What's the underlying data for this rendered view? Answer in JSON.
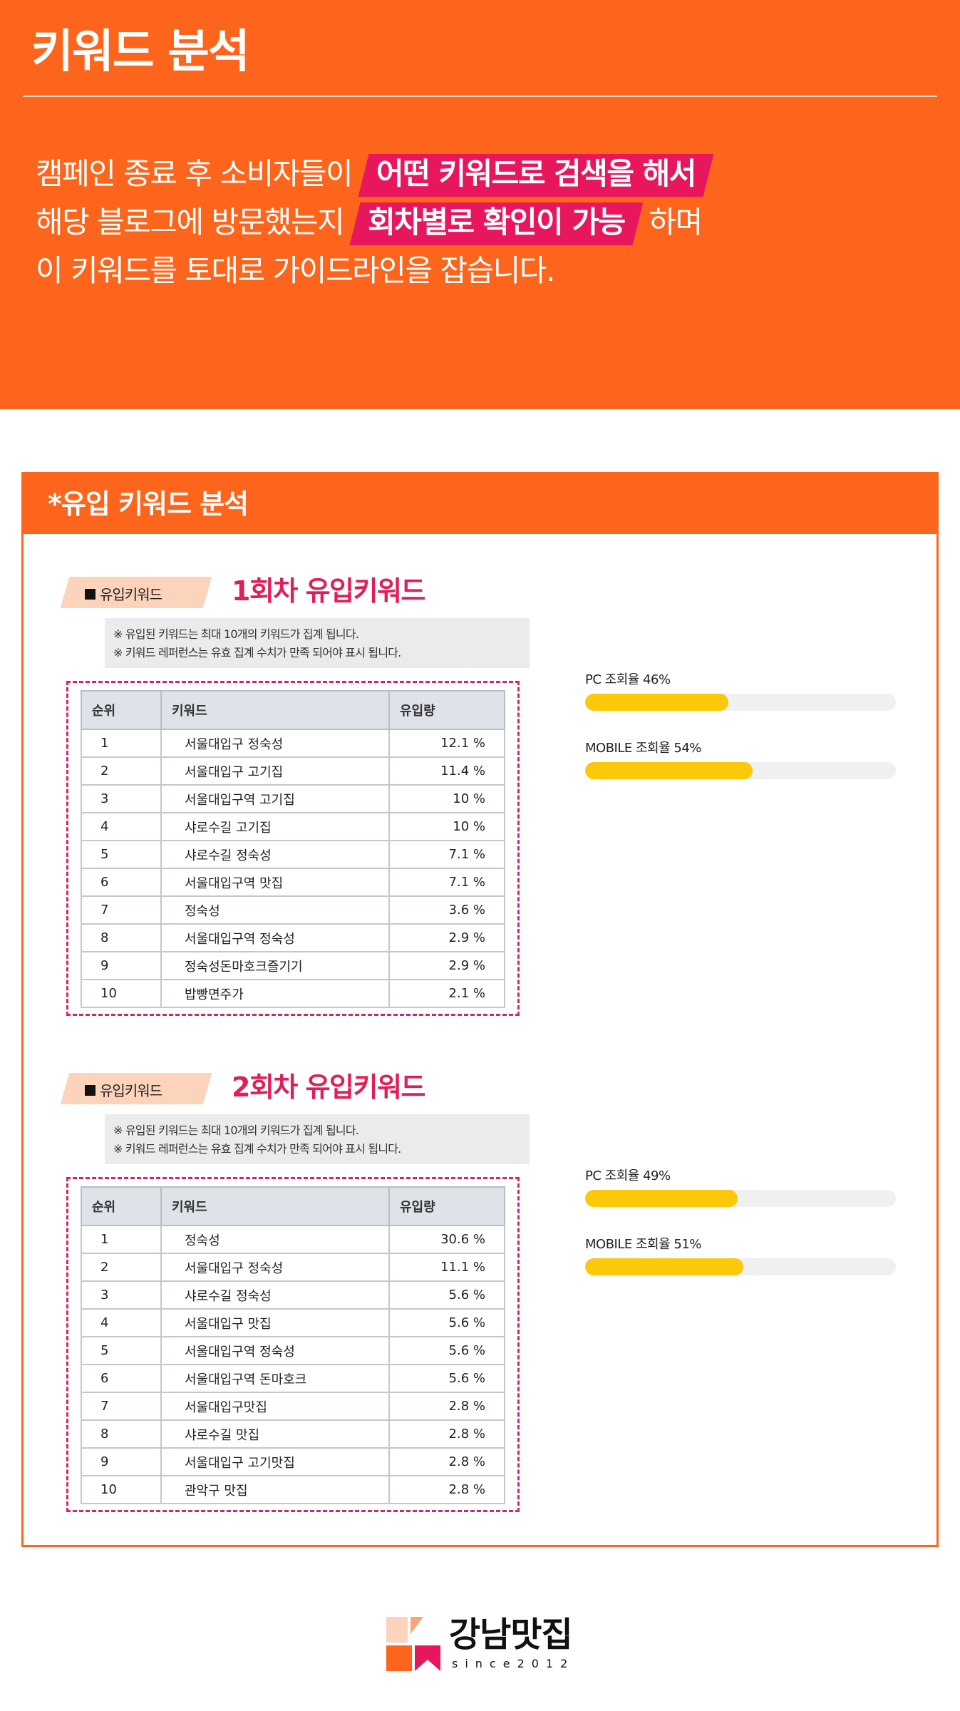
{
  "hero": {
    "title": "키워드 분석",
    "line1_pre": "캠페인 종료 후 소비자들이",
    "line1_highlight": "어떤 키워드로 검색을 해서",
    "line2_pre": "해당 블로그에 방문했는지",
    "line2_highlight": "회차별로 확인이 가능",
    "line2_post": "하며",
    "line3": "이 키워드를 토대로 가이드라인을 잡습니다.",
    "colors": {
      "background": "#fc651b",
      "highlight": "#e8175d"
    }
  },
  "panel": {
    "title": "*유입 키워드 분석",
    "rounds": [
      {
        "badge": "유입키워드",
        "title": "1회차 유입키워드",
        "notes": [
          "※ 유입된 키워드는 최대 10개의 키워드가 집계 됩니다.",
          "※ 키워드 레퍼런스는 유효 집계 수치가 만족 되어야 표시 됩니다."
        ],
        "headers": [
          "순위",
          "키워드",
          "유입량"
        ],
        "rows": [
          {
            "rank": "1",
            "keyword": "서울대입구 정숙성",
            "rate": "12.1 %"
          },
          {
            "rank": "2",
            "keyword": "서울대입구 고기집",
            "rate": "11.4 %"
          },
          {
            "rank": "3",
            "keyword": "서울대입구역 고기집",
            "rate": "10 %"
          },
          {
            "rank": "4",
            "keyword": "샤로수길 고기집",
            "rate": "10 %"
          },
          {
            "rank": "5",
            "keyword": "샤로수길 정숙성",
            "rate": "7.1 %"
          },
          {
            "rank": "6",
            "keyword": "서울대입구역 맛집",
            "rate": "7.1 %"
          },
          {
            "rank": "7",
            "keyword": "정숙성",
            "rate": "3.6 %"
          },
          {
            "rank": "8",
            "keyword": "서울대입구역 정숙성",
            "rate": "2.9 %"
          },
          {
            "rank": "9",
            "keyword": "정숙성돈마호크즐기기",
            "rate": "2.9 %"
          },
          {
            "rank": "10",
            "keyword": "밥빵면주가",
            "rate": "2.1 %"
          }
        ],
        "stats": [
          {
            "label": "PC 조회율 46%",
            "percent": 46
          },
          {
            "label": "MOBILE 조회율 54%",
            "percent": 54
          }
        ]
      },
      {
        "badge": "유입키워드",
        "title": "2회차 유입키워드",
        "notes": [
          "※ 유입된 키워드는 최대 10개의 키워드가 집계 됩니다.",
          "※ 키워드 레퍼런스는 유효 집계 수치가 만족 되어야 표시 됩니다."
        ],
        "headers": [
          "순위",
          "키워드",
          "유입량"
        ],
        "rows": [
          {
            "rank": "1",
            "keyword": "정숙성",
            "rate": "30.6 %"
          },
          {
            "rank": "2",
            "keyword": "서울대입구 정숙성",
            "rate": "11.1 %"
          },
          {
            "rank": "3",
            "keyword": "샤로수길 정숙성",
            "rate": "5.6 %"
          },
          {
            "rank": "4",
            "keyword": "서울대입구 맛집",
            "rate": "5.6 %"
          },
          {
            "rank": "5",
            "keyword": "서울대입구역 정숙성",
            "rate": "5.6 %"
          },
          {
            "rank": "6",
            "keyword": "서울대입구역 돈마호크",
            "rate": "5.6 %"
          },
          {
            "rank": "7",
            "keyword": "서울대입구맛집",
            "rate": "2.8 %"
          },
          {
            "rank": "8",
            "keyword": "샤로수길 맛집",
            "rate": "2.8 %"
          },
          {
            "rank": "9",
            "keyword": "서울대입구 고기맛집",
            "rate": "2.8 %"
          },
          {
            "rank": "10",
            "keyword": "관악구 맛집",
            "rate": "2.8 %"
          }
        ],
        "stats": [
          {
            "label": "PC 조회율 49%",
            "percent": 49
          },
          {
            "label": "MOBILE 조회율 51%",
            "percent": 51
          }
        ]
      }
    ],
    "colors": {
      "accent": "#fc651b",
      "title": "#e01e5a",
      "dash": "#d6246a",
      "bar": "#fbc80a"
    }
  },
  "logo": {
    "name": "강남맛집",
    "since": "since2012",
    "icon": "logo-mark-icon"
  }
}
